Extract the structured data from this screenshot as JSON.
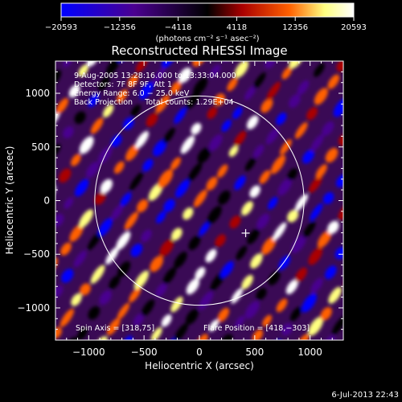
{
  "chart_data": {
    "type": "heatmap",
    "title": "Reconstructed RHESSI Image",
    "xlabel": "Heliocentric X (arcsec)",
    "ylabel": "Heliocentric Y (arcsec)",
    "xlim": [
      -1300,
      1300
    ],
    "ylim": [
      -1300,
      1300
    ],
    "x_ticks": [
      -1000,
      -500,
      0,
      500,
      1000
    ],
    "x_tick_labels": [
      "−1000",
      "−500",
      "0",
      "500",
      "1000"
    ],
    "y_ticks": [
      -1000,
      -500,
      0,
      500,
      1000
    ],
    "y_tick_labels": [
      "−1000",
      "−500",
      "0",
      "500",
      "1000"
    ],
    "grid": false,
    "colorbar": {
      "range": [
        -20593,
        20593
      ],
      "ticks": [
        -20593,
        -12356,
        -4118,
        4118,
        12356,
        20593
      ],
      "tick_labels": [
        "−20593",
        "−12356",
        "−4118",
        "4118",
        "12356",
        "20593"
      ],
      "colors": [
        "#0000ff",
        "#4a0090",
        "#000000",
        "#aa0000",
        "#ff6000",
        "#ffff80",
        "#ffffff"
      ],
      "unit_label": "(photons cm⁻² s⁻¹ asec⁻²)"
    },
    "solar_disk": {
      "center": [
        0,
        0
      ],
      "radius_arcsec": 945,
      "color": "#ffffff"
    },
    "flare_position": [
      418,
      -303
    ],
    "annotations": [
      "9-Aug-2005 13:28:16.000 to 13:33:04.000",
      "Detectors: 7F 8F 9F, Att 1",
      "Energy Range: 6.0 − 25.0 keV",
      "Back Projection     Total counts: 1.29E+04"
    ],
    "spin_axis_text": "Spin Axis = [318,75]",
    "flare_position_text": "Flare Position = [418,−303]"
  },
  "timestamp": "6-Jul-2013 22:43"
}
